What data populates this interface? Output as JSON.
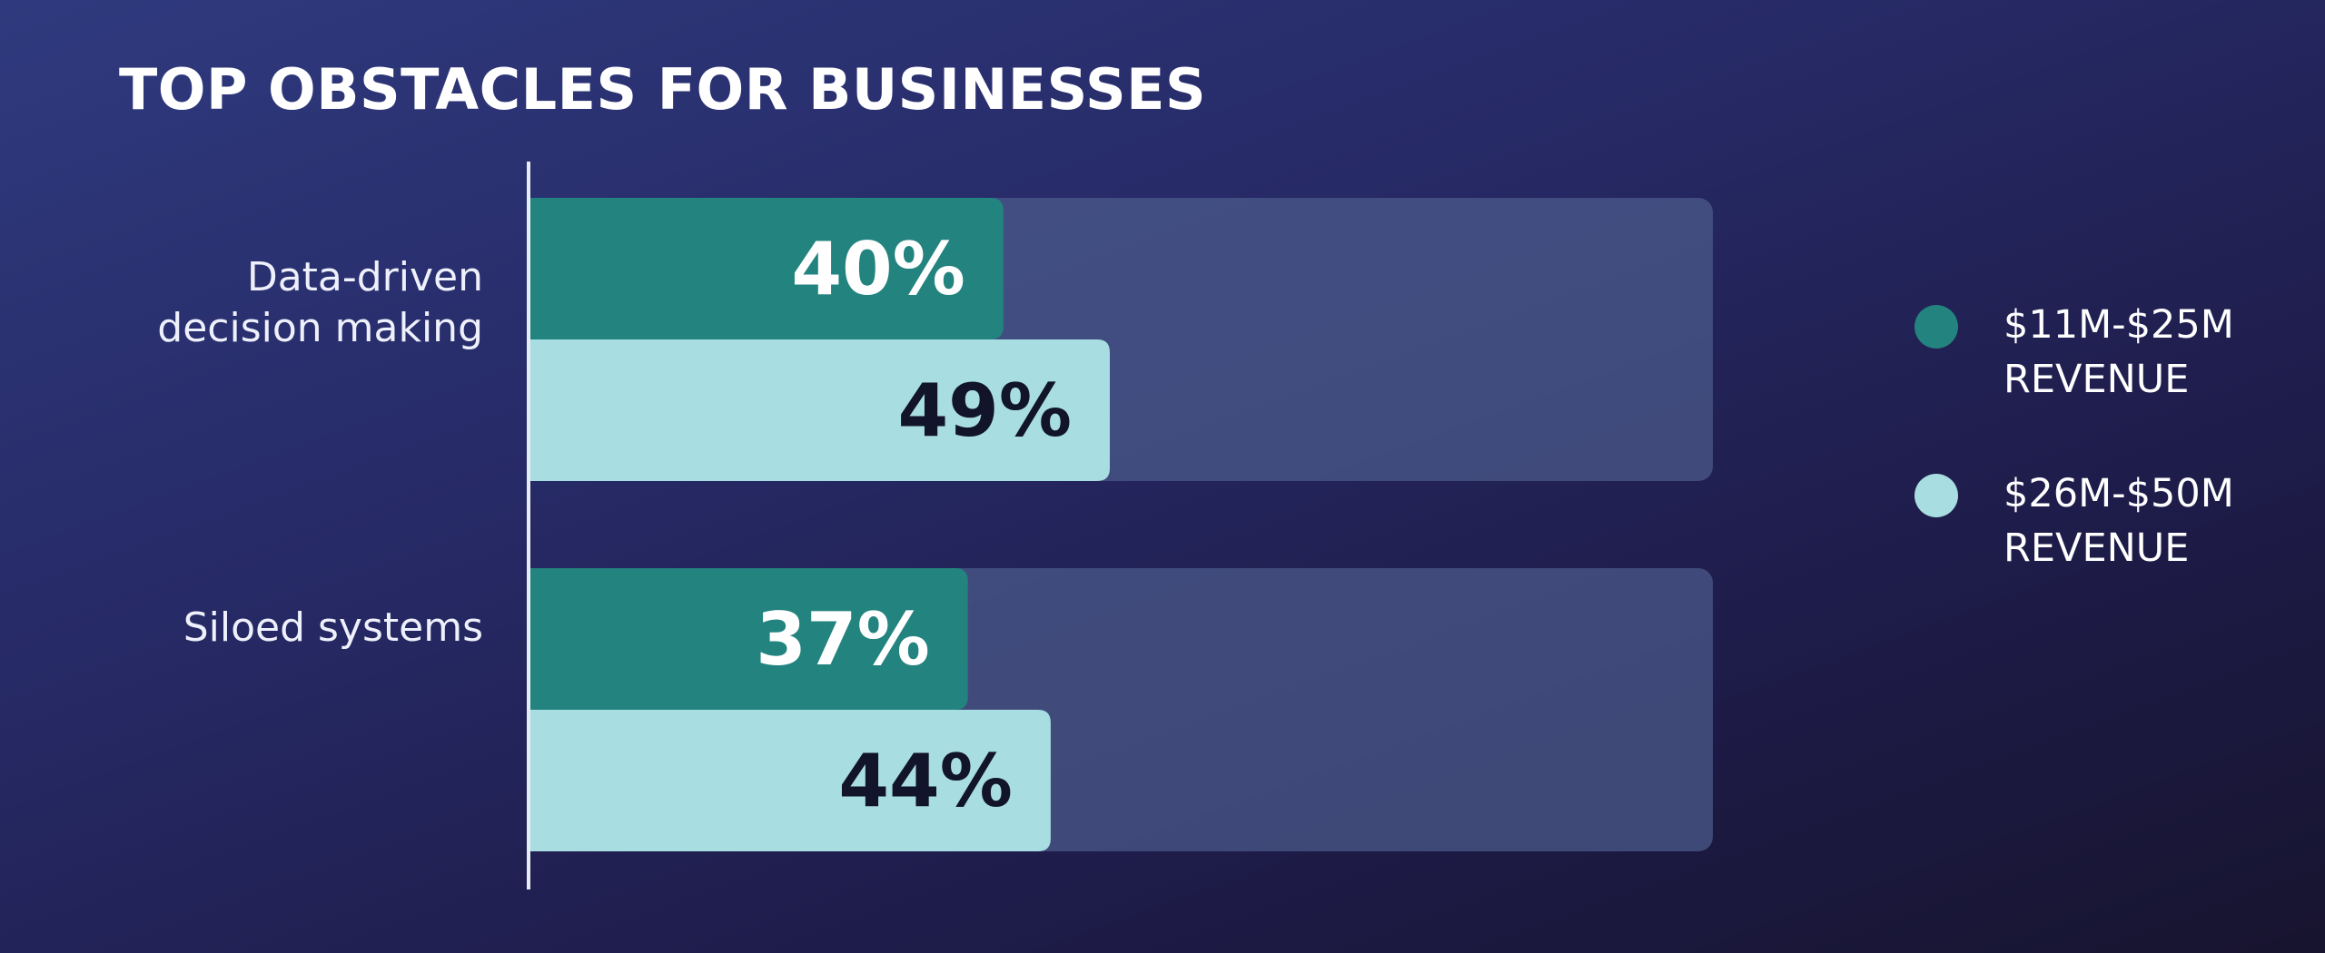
{
  "title": "TOP OBSTACLES FOR BUSINESSES",
  "colors": {
    "series_1": "#23837f",
    "series_2": "#a8dde1",
    "track": "#4c5b8c",
    "axis_line": "#e8ecf5",
    "label_on_dark": "#ffffff",
    "label_on_light": "#11142a"
  },
  "chart_data": {
    "type": "bar",
    "orientation": "horizontal",
    "title": "TOP OBSTACLES FOR BUSINESSES",
    "categories": [
      [
        "Data-driven",
        "decision making"
      ],
      [
        "Siloed systems"
      ]
    ],
    "series": [
      {
        "name": [
          "$11M-$25M",
          "REVENUE"
        ],
        "values": [
          40,
          37
        ],
        "labels": [
          "40%",
          "37%"
        ]
      },
      {
        "name": [
          "$26M-$50M",
          "REVENUE"
        ],
        "values": [
          49,
          44
        ],
        "labels": [
          "49%",
          "44%"
        ]
      }
    ],
    "xlim": [
      0,
      100
    ],
    "value_suffix": "%",
    "grid": false,
    "legend_position": "right"
  }
}
